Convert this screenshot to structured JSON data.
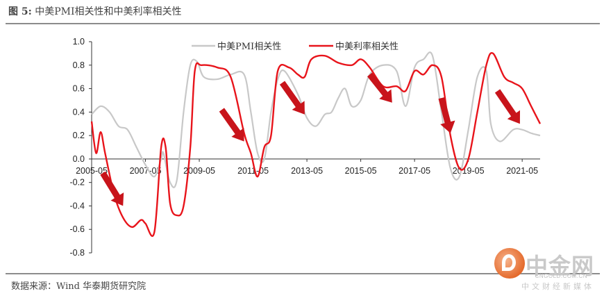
{
  "header": {
    "label": "图 5:",
    "title": "中美PMI相关性和中美利率相关性"
  },
  "footer": {
    "source": "数据来源：Wind 华泰期货研究院"
  },
  "watermark": {
    "name": "中金网",
    "url": "CNGOLD.COM.CN",
    "tagline": "中文财经新媒体"
  },
  "colors": {
    "pmi": "#c8c8c8",
    "rate": "#e8141b",
    "arrow": "#c8141b"
  },
  "chart_data": {
    "type": "line",
    "x_ticks": [
      "2005-05",
      "2007-05",
      "2009-05",
      "2011-05",
      "2013-05",
      "2015-05",
      "2017-05",
      "2019-05",
      "2021-05"
    ],
    "y_ticks": [
      "1.0",
      "0.8",
      "0.6",
      "0.4",
      "0.2",
      "0.0",
      "-0.2",
      "-0.4",
      "-0.6",
      "-0.8"
    ],
    "xlim": [
      "2005-05",
      "2022-01"
    ],
    "ylim": [
      -0.8,
      1.0
    ],
    "legend_position": "top-center",
    "series": [
      {
        "name": "中美PMI相关性",
        "color": "#c8c8c8",
        "points": [
          [
            "2005-05",
            0.38
          ],
          [
            "2005-09",
            0.45
          ],
          [
            "2006-01",
            0.4
          ],
          [
            "2006-05",
            0.28
          ],
          [
            "2006-09",
            0.25
          ],
          [
            "2007-01",
            0.1
          ],
          [
            "2007-05",
            -0.05
          ],
          [
            "2007-09",
            -0.15
          ],
          [
            "2007-12",
            0.0
          ],
          [
            "2008-01",
            0.05
          ],
          [
            "2008-04",
            -0.2
          ],
          [
            "2008-07",
            -0.18
          ],
          [
            "2008-10",
            0.4
          ],
          [
            "2009-01",
            0.8
          ],
          [
            "2009-04",
            0.83
          ],
          [
            "2009-07",
            0.7
          ],
          [
            "2010-01",
            0.68
          ],
          [
            "2010-07",
            0.72
          ],
          [
            "2011-01",
            0.72
          ],
          [
            "2011-04",
            0.4
          ],
          [
            "2011-07",
            0.05
          ],
          [
            "2011-10",
            0.0
          ],
          [
            "2012-01",
            0.4
          ],
          [
            "2012-04",
            0.68
          ],
          [
            "2012-07",
            0.75
          ],
          [
            "2013-01",
            0.55
          ],
          [
            "2013-05",
            0.35
          ],
          [
            "2013-09",
            0.28
          ],
          [
            "2014-01",
            0.38
          ],
          [
            "2014-04",
            0.4
          ],
          [
            "2014-07",
            0.52
          ],
          [
            "2014-10",
            0.6
          ],
          [
            "2015-01",
            0.45
          ],
          [
            "2015-05",
            0.5
          ],
          [
            "2015-09",
            0.72
          ],
          [
            "2016-03",
            0.8
          ],
          [
            "2016-09",
            0.75
          ],
          [
            "2017-01",
            0.45
          ],
          [
            "2017-05",
            0.78
          ],
          [
            "2017-09",
            0.85
          ],
          [
            "2018-01",
            0.88
          ],
          [
            "2018-05",
            0.4
          ],
          [
            "2018-09",
            -0.08
          ],
          [
            "2019-01",
            -0.15
          ],
          [
            "2019-05",
            0.25
          ],
          [
            "2019-09",
            0.7
          ],
          [
            "2020-01",
            0.75
          ],
          [
            "2020-03",
            0.3
          ],
          [
            "2020-07",
            0.15
          ],
          [
            "2021-01",
            0.25
          ],
          [
            "2021-05",
            0.25
          ],
          [
            "2021-09",
            0.22
          ],
          [
            "2022-01",
            0.2
          ]
        ]
      },
      {
        "name": "中美利率相关性",
        "color": "#e8141b",
        "points": [
          [
            "2005-05",
            0.32
          ],
          [
            "2005-07",
            0.05
          ],
          [
            "2005-09",
            0.23
          ],
          [
            "2005-11",
            0.05
          ],
          [
            "2006-03",
            -0.3
          ],
          [
            "2006-07",
            -0.5
          ],
          [
            "2006-11",
            -0.58
          ],
          [
            "2007-03",
            -0.52
          ],
          [
            "2007-05",
            -0.55
          ],
          [
            "2007-09",
            -0.62
          ],
          [
            "2007-12",
            0.1
          ],
          [
            "2008-02",
            0.1
          ],
          [
            "2008-04",
            -0.38
          ],
          [
            "2008-07",
            -0.48
          ],
          [
            "2008-10",
            -0.4
          ],
          [
            "2009-01",
            0.1
          ],
          [
            "2009-03",
            0.75
          ],
          [
            "2009-06",
            0.8
          ],
          [
            "2010-01",
            0.78
          ],
          [
            "2010-07",
            0.7
          ],
          [
            "2011-01",
            0.22
          ],
          [
            "2011-04",
            0.05
          ],
          [
            "2011-07",
            -0.15
          ],
          [
            "2011-10",
            0.1
          ],
          [
            "2012-01",
            0.2
          ],
          [
            "2012-04",
            0.75
          ],
          [
            "2012-09",
            0.78
          ],
          [
            "2013-01",
            0.72
          ],
          [
            "2013-04",
            0.7
          ],
          [
            "2013-07",
            0.85
          ],
          [
            "2014-01",
            0.88
          ],
          [
            "2014-07",
            0.82
          ],
          [
            "2015-01",
            0.8
          ],
          [
            "2015-05",
            0.85
          ],
          [
            "2015-09",
            0.78
          ],
          [
            "2016-03",
            0.62
          ],
          [
            "2016-09",
            0.62
          ],
          [
            "2017-01",
            0.58
          ],
          [
            "2017-05",
            0.75
          ],
          [
            "2017-09",
            0.72
          ],
          [
            "2018-01",
            0.8
          ],
          [
            "2018-05",
            0.7
          ],
          [
            "2018-09",
            0.2
          ],
          [
            "2019-01",
            -0.08
          ],
          [
            "2019-05",
            0.0
          ],
          [
            "2019-09",
            0.4
          ],
          [
            "2020-01",
            0.8
          ],
          [
            "2020-04",
            0.9
          ],
          [
            "2020-09",
            0.7
          ],
          [
            "2021-01",
            0.65
          ],
          [
            "2021-05",
            0.6
          ],
          [
            "2021-09",
            0.45
          ],
          [
            "2022-01",
            0.3
          ]
        ]
      }
    ],
    "annotations": {
      "arrows": [
        {
          "from": [
            "2005-10",
            -0.12
          ],
          "to": [
            "2006-07",
            -0.4
          ]
        },
        {
          "from": [
            "2010-03",
            0.42
          ],
          "to": [
            "2011-01",
            0.15
          ]
        },
        {
          "from": [
            "2012-06",
            0.65
          ],
          "to": [
            "2013-04",
            0.38
          ]
        },
        {
          "from": [
            "2015-09",
            0.72
          ],
          "to": [
            "2016-07",
            0.48
          ]
        },
        {
          "from": [
            "2018-05",
            0.52
          ],
          "to": [
            "2018-09",
            0.22
          ]
        },
        {
          "from": [
            "2020-06",
            0.58
          ],
          "to": [
            "2021-04",
            0.3
          ]
        }
      ]
    }
  }
}
